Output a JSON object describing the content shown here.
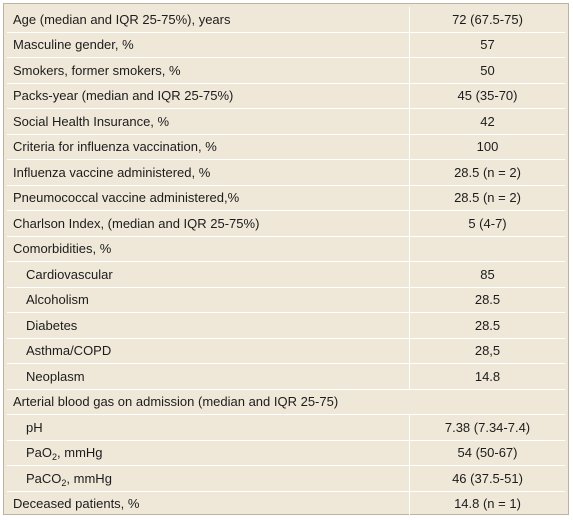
{
  "table": {
    "rows": [
      {
        "label": "Age (median and IQR 25-75%), years",
        "value": "72 (67.5-75)"
      },
      {
        "label": "Masculine gender, %",
        "value": "57"
      },
      {
        "label": "Smokers, former smokers, %",
        "value": "50"
      },
      {
        "label": "Packs-year (median and IQR 25-75%)",
        "value": "45 (35-70)"
      },
      {
        "label": "Social Health Insurance, %",
        "value": "42"
      },
      {
        "label": "Criteria for influenza vaccination, %",
        "value": "100"
      },
      {
        "label": "Influenza vaccine administered, %",
        "value": "28.5 (n = 2)"
      },
      {
        "label": "Pneumococcal vaccine administered,%",
        "value": "28.5 (n = 2)"
      },
      {
        "label": "Charlson Index, (median and IQR 25-75%)",
        "value": "5 (4-7)"
      },
      {
        "label": "Comorbidities, %",
        "value": ""
      },
      {
        "label": "Cardiovascular",
        "value": "85"
      },
      {
        "label": "Alcoholism",
        "value": "28.5"
      },
      {
        "label": "Diabetes",
        "value": "28.5"
      },
      {
        "label": "Asthma/COPD",
        "value": "28,5"
      },
      {
        "label": "Neoplasm",
        "value": "14.8"
      },
      {
        "label": "Arterial blood gas on admission (median and IQR 25-75)"
      },
      {
        "label": "pH",
        "value": "7.38 (7.34-7.4)"
      },
      {
        "label_main": "PaO",
        "label_sub": "2",
        "label_rest": ", mmHg",
        "value": "54 (50-67)"
      },
      {
        "label_main": "PaCO",
        "label_sub": "2",
        "label_rest": ", mmHg",
        "value": "46 (37.5-51)"
      },
      {
        "label": "Deceased patients, %",
        "value": "14.8 (n = 1)"
      }
    ]
  }
}
